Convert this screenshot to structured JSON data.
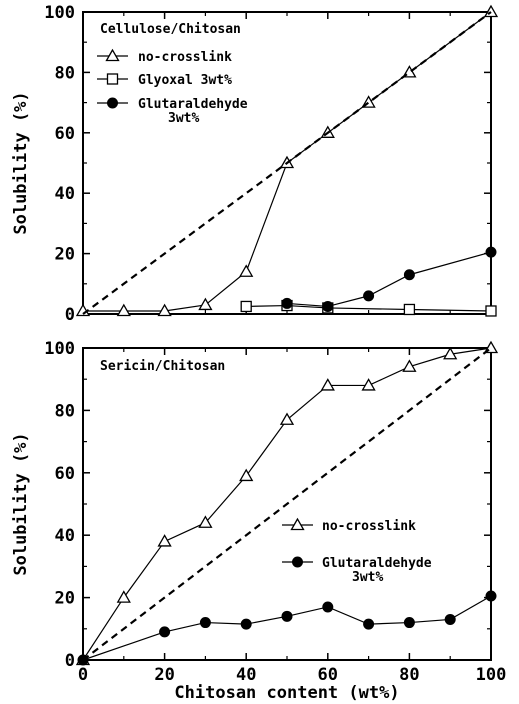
{
  "chart_data": [
    {
      "type": "line",
      "title": "Cellulose/Chitosan",
      "xlabel": "",
      "ylabel": "Solubility (%)",
      "xlim": [
        0,
        100
      ],
      "ylim": [
        0,
        100
      ],
      "xticks": [],
      "yticks": [
        "0",
        "20",
        "40",
        "60",
        "80",
        "100"
      ],
      "legend_position": "top-left",
      "series": [
        {
          "name": "no-crosslink",
          "marker": "triangle-open",
          "style": "solid",
          "x": [
            0,
            10,
            20,
            30,
            40,
            50,
            60,
            70,
            80,
            100
          ],
          "y": [
            1,
            1,
            1,
            3,
            14,
            50,
            60,
            70,
            80,
            100
          ]
        },
        {
          "name": "Glyoxal 3wt%",
          "marker": "square-open",
          "style": "solid",
          "x": [
            40,
            50,
            60,
            80,
            100
          ],
          "y": [
            2.5,
            2.8,
            2,
            1.5,
            1
          ]
        },
        {
          "name": "Glutaraldehyde 3wt%",
          "name_lines": [
            "Glutaraldehyde",
            "3wt%"
          ],
          "marker": "circle-filled",
          "style": "solid",
          "x": [
            50,
            60,
            70,
            80,
            100
          ],
          "y": [
            3.5,
            2.5,
            6,
            13,
            20.5
          ]
        },
        {
          "name": "",
          "marker": "none",
          "style": "dashed",
          "x": [
            0,
            100
          ],
          "y": [
            0,
            100
          ]
        }
      ]
    },
    {
      "type": "line",
      "title": "Sericin/Chitosan",
      "xlabel": "Chitosan content (wt%)",
      "ylabel": "Solubility (%)",
      "xlim": [
        0,
        100
      ],
      "ylim": [
        0,
        100
      ],
      "xticks": [
        "0",
        "20",
        "40",
        "60",
        "80",
        "100"
      ],
      "yticks": [
        "0",
        "20",
        "40",
        "60",
        "80",
        "100"
      ],
      "legend_position": "middle-right",
      "series": [
        {
          "name": "no-crosslink",
          "marker": "triangle-open",
          "style": "solid",
          "x": [
            0,
            10,
            20,
            30,
            40,
            50,
            60,
            70,
            80,
            90,
            100
          ],
          "y": [
            0,
            20,
            38,
            44,
            59,
            77,
            88,
            88,
            94,
            98,
            100
          ]
        },
        {
          "name": "Glutaraldehyde 3wt%",
          "name_lines": [
            "Glutaraldehyde",
            "3wt%"
          ],
          "marker": "circle-filled",
          "style": "solid",
          "x": [
            0,
            20,
            30,
            40,
            50,
            60,
            70,
            80,
            90,
            100
          ],
          "y": [
            0,
            9,
            12,
            11.5,
            14,
            17,
            11.5,
            12,
            13,
            20.5
          ]
        },
        {
          "name": "",
          "marker": "none",
          "style": "dashed",
          "x": [
            0,
            100
          ],
          "y": [
            0,
            100
          ]
        }
      ]
    }
  ]
}
